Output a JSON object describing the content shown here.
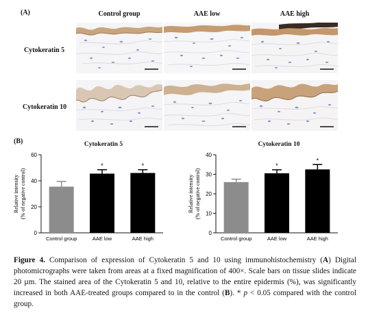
{
  "panel_a_label": "(A)",
  "panel_b_label": "(B)",
  "column_headers": [
    "Control group",
    "AAE low",
    "AAE high"
  ],
  "row_headers": [
    "Cytokeratin 5",
    "Cytokeratin 10"
  ],
  "colors": {
    "control_bar": "#8c8c8c",
    "treated_bar": "#000000",
    "stain": "#b88a5a",
    "nuclei": "#7f8fc8"
  },
  "chart_data": [
    {
      "type": "bar",
      "title": "Cytokeratin 5",
      "categories": [
        "Control group",
        "AAE low",
        "AAE high"
      ],
      "values": [
        35.5,
        45.5,
        46
      ],
      "errors": [
        4,
        3,
        2.5
      ],
      "significance": [
        "",
        "*",
        "*"
      ],
      "ylabel_line1": "Relative intensity",
      "ylabel_line2": "(% of negative control)",
      "ylim": [
        0,
        60
      ],
      "yticks": [
        "0",
        "20",
        "40",
        "60"
      ]
    },
    {
      "type": "bar",
      "title": "Cytokeratin 10",
      "categories": [
        "Control group",
        "AAE low",
        "AAE high"
      ],
      "values": [
        26,
        30.5,
        32.5
      ],
      "errors": [
        1.5,
        1.8,
        2.5
      ],
      "significance": [
        "",
        "*",
        "*"
      ],
      "ylabel_line1": "Relative intensity",
      "ylabel_line2": "(% of negative control)",
      "ylim": [
        0,
        40
      ],
      "yticks": [
        "0",
        "10",
        "20",
        "30",
        "40"
      ]
    }
  ],
  "caption": {
    "label": "Figure 4.",
    "text_1": " Comparison of expression of Cytokeratin 5 and 10 using immunohistochemistry (",
    "ref_a": "A",
    "text_2": ") Digital photomicrographs were taken from areas at a fixed magnification of 400×. Scale bars on tissue slides indicate 20 µm. The stained area of the Cytokeratin 5 and 10, relative to the entire epidermis (%), was significantly increased in both AAE-treated groups compared to in the control (",
    "ref_b": "B",
    "text_3": "). * ",
    "p_symbol": "p",
    "text_4": " < 0.05 compared with the control group."
  }
}
